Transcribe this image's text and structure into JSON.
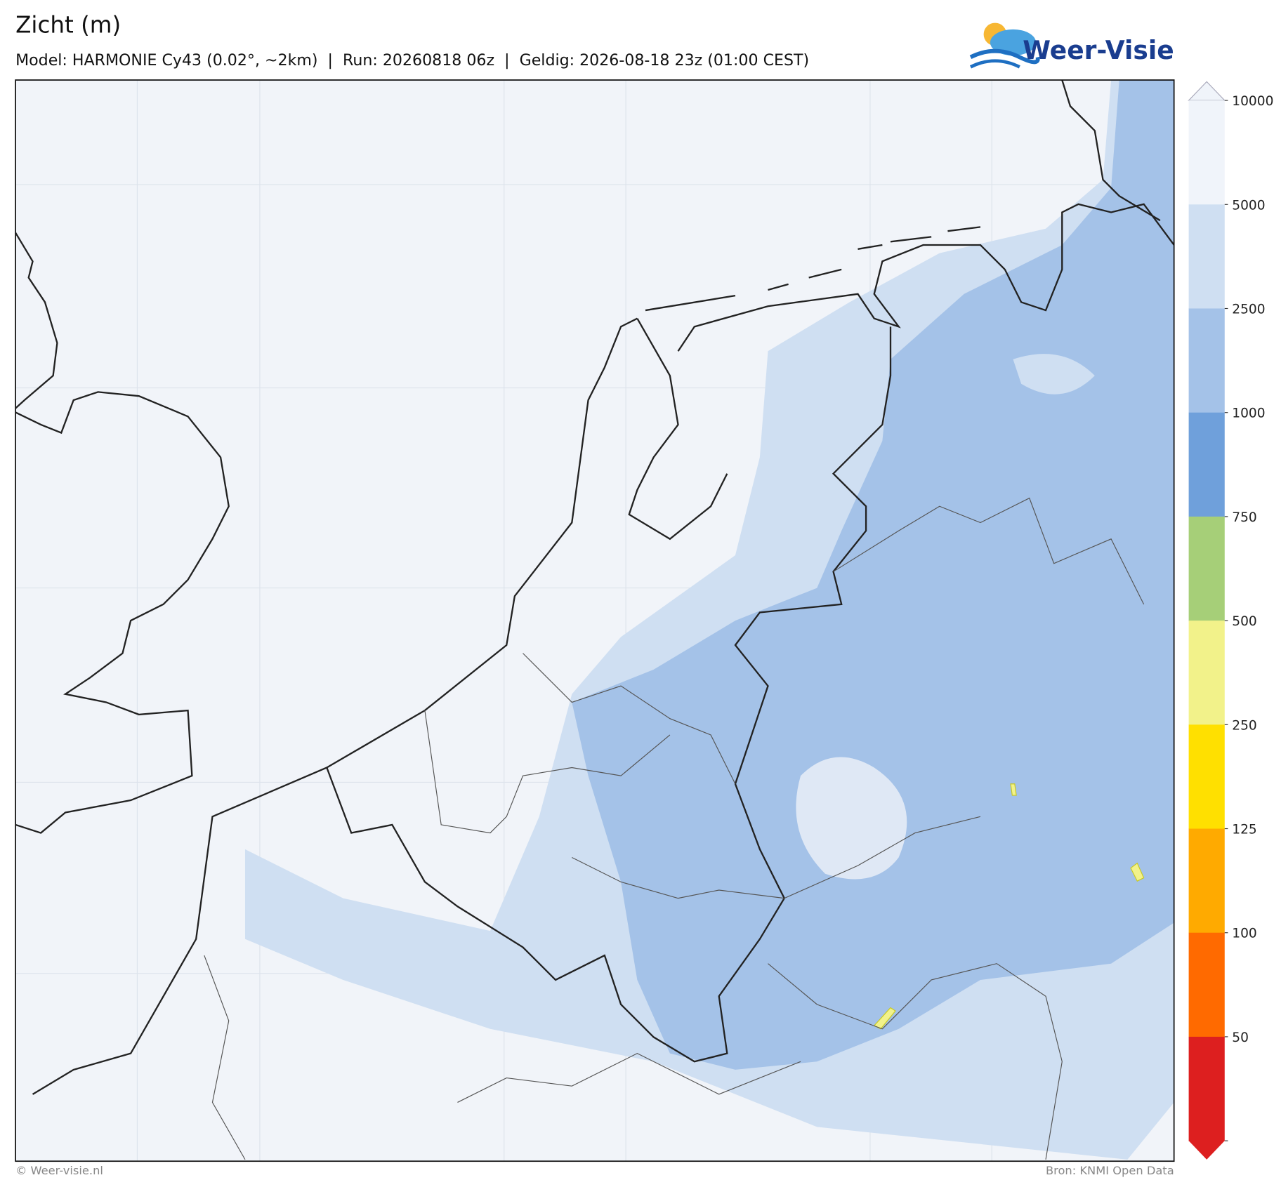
{
  "header": {
    "title": "Zicht (m)",
    "subtitle": "Model: HARMONIE Cy43 (0.02°, ~2km)  |  Run: 20260818 06z  |  Geldig: 2026-08-18 23z (01:00 CEST)",
    "logo": "Weer-Visie"
  },
  "colorbar": {
    "ticks": [
      10000,
      5000,
      2500,
      1000,
      750,
      500,
      250,
      125,
      100,
      50
    ],
    "colors": [
      "#f0f4fa",
      "#cfdff2",
      "#a4c2e8",
      "#6fa0db",
      "#a6cf78",
      "#f2f28a",
      "#ffe000",
      "#ffaa00",
      "#ff6a00",
      "#dd1f1f"
    ],
    "top_color": "#f0f4fa",
    "bottom_color": "#dd1f1f"
  },
  "footer": {
    "left": "© Weer-visie.nl",
    "right": "Bron: KNMI Open Data"
  }
}
